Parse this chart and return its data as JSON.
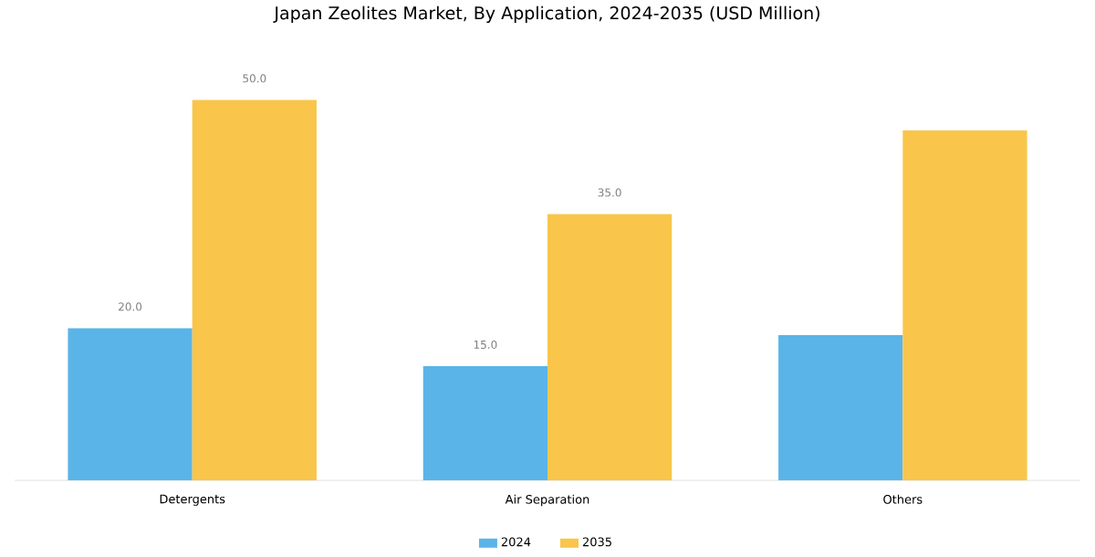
{
  "chart_data": {
    "type": "bar",
    "title": "Japan Zeolites Market, By Application, 2024-2035 (USD Million)",
    "categories": [
      "Detergents",
      "Air Separation",
      "Others"
    ],
    "series": [
      {
        "name": "2024",
        "color": "#5ab4e8",
        "values": [
          20.0,
          15.0,
          19.1
        ],
        "value_labels": [
          "20.0",
          "15.0",
          null
        ]
      },
      {
        "name": "2035",
        "color": "#f9c54a",
        "values": [
          50.0,
          35.0,
          46.0
        ],
        "value_labels": [
          "50.0",
          "35.0",
          null
        ]
      }
    ],
    "legend": "bottom"
  }
}
